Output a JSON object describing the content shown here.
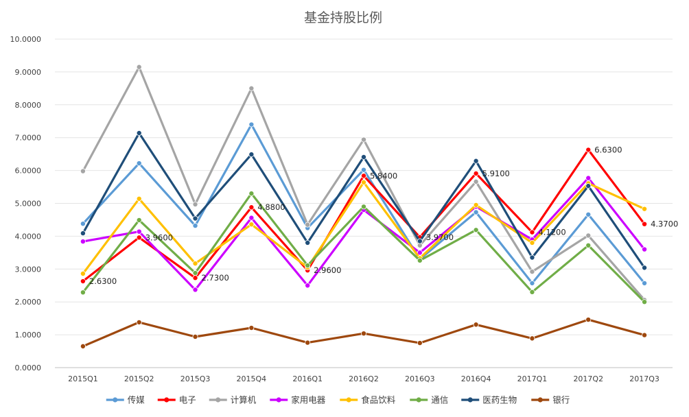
{
  "chart_data": {
    "type": "line",
    "title": "基金持股比例",
    "xlabel": "",
    "ylabel": "",
    "categories": [
      "2015Q1",
      "2015Q2",
      "2015Q3",
      "2015Q4",
      "2016Q1",
      "2016Q2",
      "2016Q3",
      "2016Q4",
      "2017Q1",
      "2017Q2",
      "2017Q3"
    ],
    "y_ticks": [
      "0.0000",
      "1.0000",
      "2.0000",
      "3.0000",
      "4.0000",
      "5.0000",
      "6.0000",
      "7.0000",
      "8.0000",
      "9.0000",
      "10.0000"
    ],
    "ylim": [
      0,
      10
    ],
    "grid": true,
    "legend_position": "bottom",
    "series": [
      {
        "name": "传媒",
        "color": "#5b9bd5",
        "values": [
          4.38,
          6.22,
          4.32,
          7.4,
          4.25,
          6.02,
          3.3,
          4.73,
          2.57,
          4.66,
          2.57
        ]
      },
      {
        "name": "电子",
        "color": "#ff0000",
        "values": [
          2.63,
          3.96,
          2.73,
          4.88,
          2.96,
          5.84,
          3.97,
          5.91,
          4.12,
          6.63,
          4.37
        ]
      },
      {
        "name": "计算机",
        "color": "#a5a5a5",
        "values": [
          5.98,
          9.15,
          4.97,
          8.5,
          4.35,
          6.94,
          3.72,
          5.66,
          2.92,
          4.02,
          2.06
        ]
      },
      {
        "name": "家用电器",
        "color": "#cc00ff",
        "values": [
          3.84,
          4.14,
          2.37,
          4.56,
          2.5,
          4.8,
          3.5,
          4.9,
          3.9,
          5.77,
          3.6
        ]
      },
      {
        "name": "食品饮料",
        "color": "#ffc000",
        "values": [
          2.86,
          5.14,
          3.17,
          4.36,
          3.05,
          5.64,
          3.33,
          4.95,
          3.8,
          5.61,
          4.83
        ]
      },
      {
        "name": "通信",
        "color": "#70ad47",
        "values": [
          2.29,
          4.49,
          2.88,
          5.3,
          3.11,
          4.9,
          3.26,
          4.19,
          2.3,
          3.72,
          2.0
        ]
      },
      {
        "name": "医药生物",
        "color": "#1f4e79",
        "values": [
          4.09,
          7.14,
          4.54,
          6.49,
          3.8,
          6.41,
          3.85,
          6.29,
          3.35,
          5.53,
          3.04
        ]
      },
      {
        "name": "银行",
        "color": "#9e480e",
        "values": [
          0.65,
          1.38,
          0.94,
          1.21,
          0.76,
          1.04,
          0.75,
          1.31,
          0.89,
          1.46,
          0.99
        ]
      }
    ],
    "data_labels": {
      "series": "电子",
      "texts": [
        "2.6300",
        "3.9600",
        "2.7300",
        "4.8800",
        "2.9600",
        "5.8400",
        "3.9700",
        "5.9100",
        "4.1200",
        "6.6300",
        "4.3700"
      ]
    }
  }
}
